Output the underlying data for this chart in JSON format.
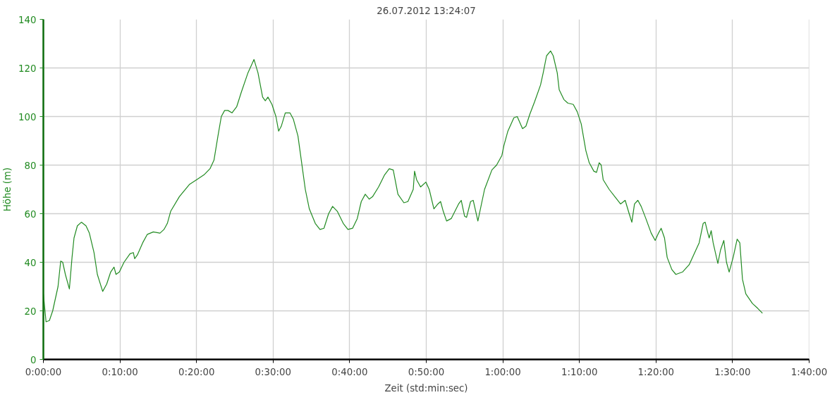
{
  "chart_data": {
    "type": "line",
    "title": "26.07.2012 13:24:07",
    "xlabel": "Zeit (std:min:sec)",
    "ylabel": "Höhe (m)",
    "xlim": [
      0,
      1.6667
    ],
    "ylim": [
      0,
      140
    ],
    "xticks": [
      {
        "value": 0,
        "label": "0:00:00"
      },
      {
        "value": 0.16667,
        "label": "0:10:00"
      },
      {
        "value": 0.33333,
        "label": "0:20:00"
      },
      {
        "value": 0.5,
        "label": "0:30:00"
      },
      {
        "value": 0.66667,
        "label": "0:40:00"
      },
      {
        "value": 0.83333,
        "label": "0:50:00"
      },
      {
        "value": 1,
        "label": "1:00:00"
      },
      {
        "value": 1.16667,
        "label": "1:10:00"
      },
      {
        "value": 1.33333,
        "label": "1:20:00"
      },
      {
        "value": 1.5,
        "label": "1:30:00"
      },
      {
        "value": 1.66667,
        "label": "1:40:00"
      }
    ],
    "yticks": [
      0,
      20,
      40,
      60,
      80,
      100,
      120,
      140
    ],
    "grid": true,
    "marker": "none",
    "line_style": "solid",
    "x": [
      0,
      0.0058,
      0.0131,
      0.0203,
      0.0319,
      0.0377,
      0.0421,
      0.0479,
      0.0566,
      0.0624,
      0.0667,
      0.074,
      0.0827,
      0.0928,
      0.1001,
      0.1102,
      0.1175,
      0.1291,
      0.1378,
      0.1465,
      0.1538,
      0.1581,
      0.1654,
      0.1755,
      0.1886,
      0.1958,
      0.1987,
      0.2045,
      0.2161,
      0.2263,
      0.2393,
      0.2538,
      0.2625,
      0.2698,
      0.2771,
      0.2959,
      0.3177,
      0.3336,
      0.3496,
      0.3626,
      0.3713,
      0.38,
      0.3873,
      0.3945,
      0.4018,
      0.4105,
      0.4207,
      0.4308,
      0.4453,
      0.4584,
      0.4671,
      0.4772,
      0.483,
      0.4888,
      0.4975,
      0.5062,
      0.512,
      0.5178,
      0.5265,
      0.5367,
      0.5439,
      0.5541,
      0.5614,
      0.5701,
      0.5788,
      0.5918,
      0.602,
      0.6107,
      0.6208,
      0.6295,
      0.6397,
      0.6527,
      0.6629,
      0.673,
      0.6832,
      0.6919,
      0.7006,
      0.7093,
      0.7165,
      0.7296,
      0.7427,
      0.7528,
      0.7615,
      0.7717,
      0.7847,
      0.7934,
      0.805,
      0.8079,
      0.8123,
      0.821,
      0.8326,
      0.8398,
      0.85,
      0.8587,
      0.8645,
      0.8703,
      0.8776,
      0.8877,
      0.9037,
      0.9095,
      0.9167,
      0.9211,
      0.9298,
      0.9356,
      0.9457,
      0.9602,
      0.9762,
      0.9864,
      0.998,
      1.0023,
      1.011,
      1.0241,
      1.0313,
      1.0429,
      1.0502,
      1.0589,
      1.069,
      1.0821,
      1.0879,
      1.0952,
      1.1039,
      1.1097,
      1.1184,
      1.1227,
      1.1329,
      1.1416,
      1.1532,
      1.1619,
      1.1706,
      1.1807,
      1.188,
      1.1981,
      1.2039,
      1.2097,
      1.2141,
      1.2184,
      1.2315,
      1.246,
      1.2562,
      1.2663,
      1.275,
      1.2808,
      1.2866,
      1.2939,
      1.3011,
      1.3113,
      1.3229,
      1.3316,
      1.3388,
      1.3446,
      1.3519,
      1.3577,
      1.3679,
      1.3766,
      1.3911,
      1.4056,
      1.4201,
      1.4273,
      1.436,
      1.4404,
      1.4462,
      1.4491,
      1.4535,
      1.4578,
      1.468,
      1.4738,
      1.481,
      1.4868,
      1.4926,
      1.5013,
      1.51,
      1.5158,
      1.5216,
      1.5289,
      1.5434,
      1.555,
      1.5651
    ],
    "series": [
      {
        "color": "#228b22",
        "values": [
          27,
          15.5,
          16,
          20,
          30,
          40.5,
          40,
          35,
          29,
          42,
          50,
          55,
          56.5,
          55,
          52,
          44,
          35,
          28,
          31,
          36,
          38,
          35,
          36,
          40,
          43.5,
          44,
          41.5,
          43,
          48,
          51.5,
          52.5,
          52,
          53.5,
          56,
          61,
          67,
          72,
          74,
          76,
          78.5,
          82,
          92,
          100,
          102.5,
          102.5,
          101.5,
          104,
          110,
          118,
          123.5,
          118,
          108,
          106.5,
          108,
          105,
          100,
          94,
          96,
          101.5,
          101.5,
          99,
          92,
          82,
          70,
          62,
          56,
          53.5,
          54,
          60,
          63,
          61,
          56,
          53.5,
          54,
          58,
          65,
          68,
          66,
          67,
          71,
          76,
          78.5,
          78,
          68,
          64.5,
          65,
          70,
          77.5,
          74,
          71,
          73,
          70,
          62,
          64,
          65,
          61,
          57,
          58,
          64,
          65.5,
          59,
          58.5,
          65,
          65.5,
          57,
          70,
          78,
          80,
          84,
          88,
          94,
          99.5,
          100,
          95,
          96,
          101,
          106,
          113,
          118,
          125,
          127,
          125,
          118,
          111,
          107,
          105.5,
          105,
          102,
          97,
          86,
          81,
          77.5,
          77,
          81,
          80,
          74,
          70,
          66.5,
          64,
          65.5,
          60,
          56.5,
          64,
          65.5,
          63,
          58,
          52,
          49,
          52,
          54,
          50,
          42,
          37,
          35,
          36,
          39,
          45,
          48,
          56,
          56.5,
          52,
          50,
          53,
          48,
          39.5,
          45,
          49,
          40,
          36,
          42,
          49.5,
          48,
          33,
          27,
          23,
          21,
          19
        ]
      }
    ]
  }
}
